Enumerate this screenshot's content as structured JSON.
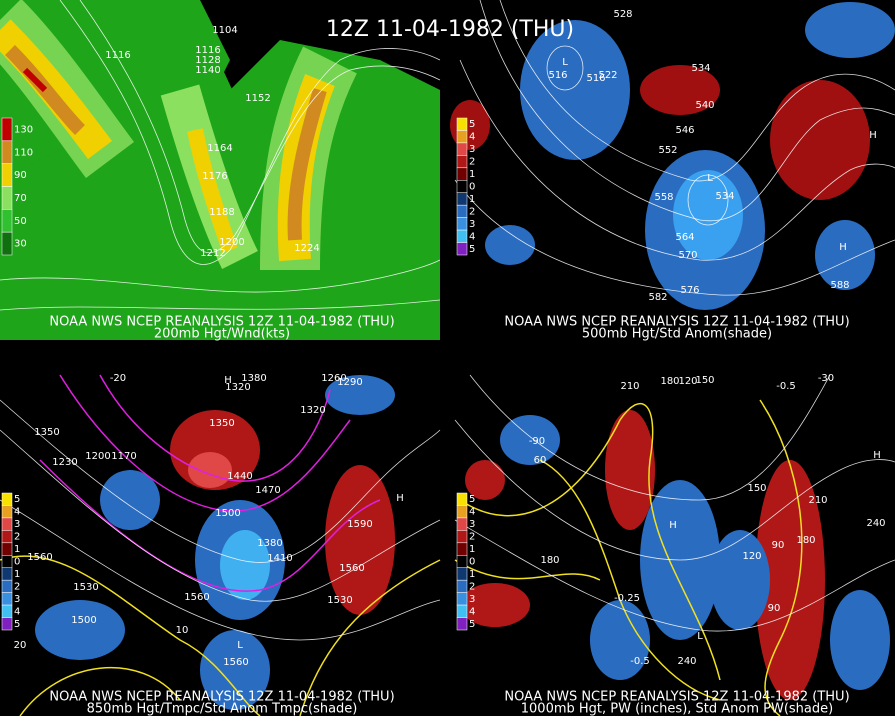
{
  "title": "12Z 11-04-1982 (THU)",
  "panels": [
    {
      "caption": "NOAA NWS NCEP REANALYSIS 12Z 11-04-1982 (THU)",
      "subtitle": "200mb Hgt/Wnd(kts)",
      "colorbar": [
        130,
        110,
        90,
        70,
        50,
        30
      ],
      "contour_labels": [
        "1104",
        "1116",
        "1116",
        "1128",
        "1140",
        "1152",
        "1164",
        "1176",
        "1188",
        "1200",
        "1212",
        "1224"
      ]
    },
    {
      "caption": "NOAA NWS NCEP REANALYSIS 12Z 11-04-1982 (THU)",
      "subtitle": "500mb Hgt/Std Anom(shade)",
      "colorbar": [
        5,
        4,
        3,
        2,
        1,
        0,
        1,
        2,
        3,
        4,
        5
      ],
      "contour_labels": [
        "528",
        "516",
        "516",
        "522",
        "534",
        "540",
        "546",
        "552",
        "558",
        "564",
        "570",
        "576",
        "582",
        "588",
        "534",
        "L",
        "L",
        "H",
        "H"
      ]
    },
    {
      "caption": "NOAA NWS NCEP REANALYSIS 12Z 11-04-1982 (THU)",
      "subtitle": "850mb Hgt/Tmpc/Std Anom Tmpc(shade)",
      "colorbar": [
        5,
        4,
        3,
        2,
        1,
        0,
        1,
        2,
        3,
        4,
        5
      ],
      "contour_labels": [
        "1560",
        "1530",
        "1500",
        "1560",
        "1590",
        "1560",
        "1530",
        "1440",
        "1470",
        "1500",
        "1410",
        "1380",
        "1350",
        "1320",
        "1380",
        "1230",
        "1200",
        "1170",
        "1350",
        "1260",
        "1290",
        "1320",
        "-20",
        "10",
        "20",
        "1560",
        "H",
        "H",
        "L"
      ]
    },
    {
      "caption": "NOAA NWS NCEP REANALYSIS 12Z 11-04-1982 (THU)",
      "subtitle": "1000mb Hgt, PW (inches), Std Anom PW(shade)",
      "colorbar": [
        5,
        4,
        3,
        2,
        1,
        0,
        1,
        2,
        3,
        4,
        5
      ],
      "contour_labels": [
        "180",
        "150",
        "120",
        "90",
        "180",
        "210",
        "240",
        "90",
        "-0.25",
        "-0.5",
        "240",
        "-90",
        "60",
        "150",
        "210",
        "180",
        "120",
        "-0.5",
        "-30",
        "H",
        "H",
        "L"
      ]
    }
  ]
}
